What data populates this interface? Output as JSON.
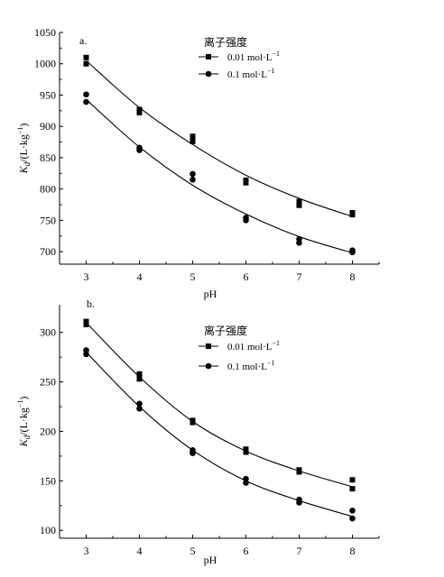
{
  "chart_data": [
    {
      "type": "scatter",
      "panel_label": "a.",
      "xlabel": "pH",
      "ylabel": "Kd/(L·kg⁻¹)",
      "xlim": [
        2.5,
        8.5
      ],
      "ylim": [
        680,
        1050
      ],
      "x_ticks": [
        3,
        4,
        5,
        6,
        7,
        8
      ],
      "y_ticks": [
        700,
        750,
        800,
        850,
        900,
        950,
        1000,
        1050
      ],
      "legend_title": "离子强度",
      "legend_position": "top-right",
      "series": [
        {
          "name": "0.01 mol·L⁻¹",
          "marker": "square",
          "points": [
            [
              3,
              1010
            ],
            [
              3,
              1000
            ],
            [
              4,
              927
            ],
            [
              4,
              922
            ],
            [
              5,
              884
            ],
            [
              5,
              876
            ],
            [
              6,
              814
            ],
            [
              6,
              810
            ],
            [
              7,
              780
            ],
            [
              7,
              774
            ],
            [
              8,
              762
            ],
            [
              8,
              759
            ]
          ],
          "fit": [
            [
              3,
              1005
            ],
            [
              4,
              930
            ],
            [
              5,
              871
            ],
            [
              6,
              822
            ],
            [
              7,
              785
            ],
            [
              8,
              756
            ]
          ]
        },
        {
          "name": "0.1 mol·L⁻¹",
          "marker": "circle",
          "points": [
            [
              3,
              951
            ],
            [
              3,
              939
            ],
            [
              4,
              866
            ],
            [
              4,
              862
            ],
            [
              5,
              824
            ],
            [
              5,
              815
            ],
            [
              6,
              754
            ],
            [
              6,
              750
            ],
            [
              7,
              720
            ],
            [
              7,
              714
            ],
            [
              8,
              702
            ],
            [
              8,
              699
            ]
          ],
          "fit": [
            [
              3,
              943
            ],
            [
              4,
              867
            ],
            [
              5,
              806
            ],
            [
              6,
              760
            ],
            [
              7,
              724
            ],
            [
              8,
              698
            ]
          ]
        }
      ]
    },
    {
      "type": "scatter",
      "panel_label": "b.",
      "xlabel": "pH",
      "ylabel": "Kd/(L·kg⁻¹)",
      "xlim": [
        2.5,
        8.5
      ],
      "ylim": [
        92,
        328
      ],
      "x_ticks": [
        3,
        4,
        5,
        6,
        7,
        8
      ],
      "y_ticks": [
        100,
        150,
        200,
        250,
        300
      ],
      "legend_title": "离子强度",
      "legend_position": "top-right",
      "series": [
        {
          "name": "0.01 mol·L⁻¹",
          "marker": "square",
          "points": [
            [
              3,
              311
            ],
            [
              3,
              308
            ],
            [
              4,
              258
            ],
            [
              4,
              253
            ],
            [
              5,
              211
            ],
            [
              5,
              209
            ],
            [
              6,
              182
            ],
            [
              6,
              179
            ],
            [
              7,
              161
            ],
            [
              7,
              159
            ],
            [
              8,
              151
            ],
            [
              8,
              142
            ]
          ],
          "fit": [
            [
              3,
              310
            ],
            [
              4,
              255
            ],
            [
              5,
              210
            ],
            [
              6,
              180
            ],
            [
              7,
              160
            ],
            [
              8,
              144
            ]
          ]
        },
        {
          "name": "0.1 mol·L⁻¹",
          "marker": "circle",
          "points": [
            [
              3,
              282
            ],
            [
              3,
              278
            ],
            [
              4,
              228
            ],
            [
              4,
              223
            ],
            [
              5,
              181
            ],
            [
              5,
              178
            ],
            [
              6,
              152
            ],
            [
              6,
              148
            ],
            [
              7,
              131
            ],
            [
              7,
              128
            ],
            [
              8,
              120
            ],
            [
              8,
              112
            ]
          ],
          "fit": [
            [
              3,
              280
            ],
            [
              4,
              225
            ],
            [
              5,
              181
            ],
            [
              6,
              150
            ],
            [
              7,
              130
            ],
            [
              8,
              114
            ]
          ]
        }
      ]
    }
  ]
}
